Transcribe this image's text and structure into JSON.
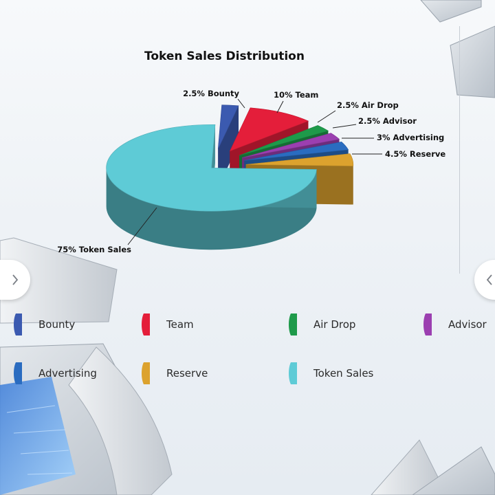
{
  "chart_data": {
    "type": "pie",
    "title": "Token Sales Distribution",
    "slices": [
      {
        "name": "Bounty",
        "value": 2.5,
        "label": "2.5% Bounty",
        "color": "#3b5ab0"
      },
      {
        "name": "Team",
        "value": 10,
        "label": "10% Team",
        "color": "#e41e3a"
      },
      {
        "name": "Air Drop",
        "value": 2.5,
        "label": "2.5% Air Drop",
        "color": "#1e9a4a"
      },
      {
        "name": "Advisor",
        "value": 2.5,
        "label": "2.5% Advisor",
        "color": "#9b3fb0"
      },
      {
        "name": "Advertising",
        "value": 3,
        "label": "3% Advertising",
        "color": "#2a6cc0"
      },
      {
        "name": "Reserve",
        "value": 4.5,
        "label": "4.5% Reserve",
        "color": "#dca22e"
      },
      {
        "name": "Token Sales",
        "value": 75,
        "label": "75% Token Sales",
        "color": "#5ecbd6"
      }
    ],
    "legend_placement": "bottom"
  },
  "legend": [
    {
      "label": "Bounty",
      "color": "#3b5ab0"
    },
    {
      "label": "Team",
      "color": "#e41e3a"
    },
    {
      "label": "Air Drop",
      "color": "#1e9a4a"
    },
    {
      "label": "Advisor",
      "color": "#9b3fb0"
    },
    {
      "label": "Advertising",
      "color": "#2a6cc0"
    },
    {
      "label": "Reserve",
      "color": "#dca22e"
    },
    {
      "label": "Token Sales",
      "color": "#5ecbd6"
    }
  ],
  "nav": {
    "prev_icon": "chevron-right-icon",
    "next_icon": "chevron-left-icon"
  }
}
